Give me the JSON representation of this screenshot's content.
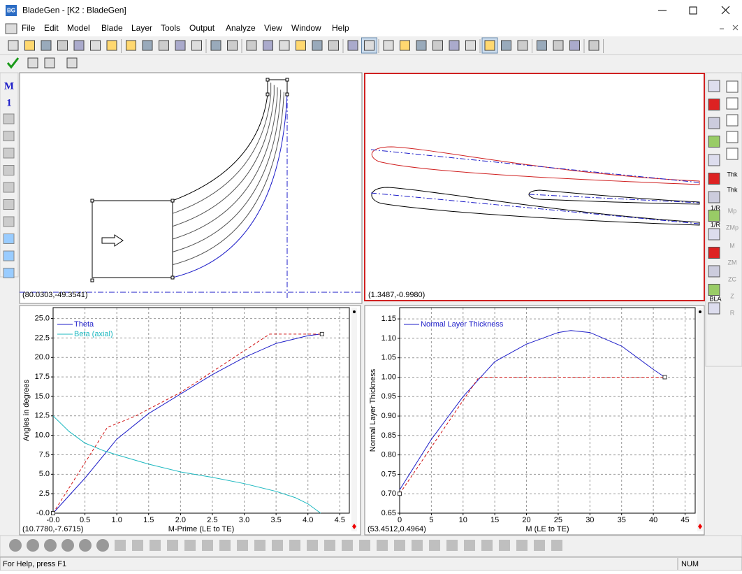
{
  "window": {
    "icon": "BG",
    "title": "BladeGen - [K2 : BladeGen]"
  },
  "menu": [
    "File",
    "Edit",
    "Model",
    "Blade",
    "Layer",
    "Tools",
    "Output",
    "Analyze",
    "View",
    "Window",
    "Help"
  ],
  "left_tools": [
    "M",
    "1"
  ],
  "right_tools": [
    "Thk",
    "Thk",
    "1/R",
    "1/R",
    "BLA",
    "Mp",
    "ZMp",
    "M",
    "ZM",
    "ZC",
    "Z",
    "R"
  ],
  "viewports": {
    "meridional_readout": "(80.0303,-49.3541)",
    "blade_readout": "(1.3487,-0.9980)"
  },
  "chart_data": [
    {
      "type": "line",
      "x_label": "M-Prime (LE to TE)",
      "y_label": "Angles in degrees",
      "readout": "(10.7780,-7.6715)",
      "grid": true,
      "xlim": [
        0,
        4.65
      ],
      "xticks": [
        {
          "value": 0,
          "label": "-0.0"
        },
        0.5,
        {
          "value": 1,
          "label": "1.0"
        },
        1.5,
        {
          "value": 2,
          "label": "2.0"
        },
        2.5,
        {
          "value": 3,
          "label": "3.0"
        },
        3.5,
        {
          "value": 4,
          "label": "4.0"
        },
        4.5
      ],
      "ylim": [
        0,
        26.4
      ],
      "yticks": [
        {
          "value": 0,
          "label": "-0.0"
        },
        2.5,
        {
          "value": 5,
          "label": "5.0"
        },
        7.5,
        {
          "value": 10,
          "label": "10.0"
        },
        12.5,
        {
          "value": 15,
          "label": "15.0"
        },
        17.5,
        {
          "value": 20,
          "label": "20.0"
        },
        22.5,
        {
          "value": 25,
          "label": "25.0"
        }
      ],
      "series": [
        {
          "name": "Theta",
          "color": "#1c1cc8",
          "x": [
            0,
            0.5,
            1,
            1.5,
            2,
            2.5,
            3,
            3.5,
            4,
            4.2
          ],
          "values": [
            0,
            4.5,
            9.5,
            12.8,
            15.3,
            17.8,
            20,
            21.8,
            22.8,
            23
          ]
        },
        {
          "name": "Beta (axial)",
          "color": "#1cb8c0",
          "x": [
            0,
            0.25,
            0.5,
            0.8,
            1,
            1.5,
            2,
            2.5,
            3,
            3.5,
            3.8,
            4,
            4.2
          ],
          "values": [
            12.5,
            10.5,
            9,
            8,
            7.5,
            6.3,
            5.3,
            4.6,
            3.8,
            2.8,
            2,
            1.2,
            0
          ]
        },
        {
          "color": "#d01010",
          "dashed": true,
          "end_markers": true,
          "x": [
            0,
            0.85,
            1.3,
            2,
            3.4,
            4.22
          ],
          "values": [
            0,
            11,
            12.5,
            15.5,
            23,
            23
          ]
        }
      ]
    },
    {
      "type": "line",
      "x_label": "M (LE to TE)",
      "y_label": "Normal Layer Thickness",
      "readout": "(53.4512,0.4964)",
      "grid": true,
      "xlim": [
        0,
        46.6
      ],
      "xticks": [
        0,
        5,
        10,
        15,
        20,
        25,
        30,
        35,
        40,
        45
      ],
      "ylim": [
        0.65,
        1.179
      ],
      "yticks": [
        0.65,
        {
          "value": 0.7,
          "label": "0.70"
        },
        0.75,
        {
          "value": 0.8,
          "label": "0.80"
        },
        0.85,
        {
          "value": 0.9,
          "label": "0.90"
        },
        0.95,
        {
          "value": 1,
          "label": "1.00"
        },
        1.05,
        {
          "value": 1.1,
          "label": "1.10"
        },
        1.15
      ],
      "series": [
        {
          "name": "Normal Layer Thickness",
          "color": "#1c1cc8",
          "x": [
            0,
            5,
            10,
            15,
            20,
            25,
            27,
            30,
            35,
            40,
            41.8
          ],
          "values": [
            0.71,
            0.84,
            0.95,
            1.04,
            1.085,
            1.115,
            1.12,
            1.115,
            1.08,
            1.02,
            1.0
          ]
        },
        {
          "color": "#d01010",
          "dashed": true,
          "end_markers": true,
          "x": [
            0,
            12.5,
            41.8
          ],
          "values": [
            0.7,
            1.0,
            1.0
          ]
        }
      ]
    }
  ],
  "status": {
    "help": "For Help, press F1",
    "num": "NUM"
  }
}
